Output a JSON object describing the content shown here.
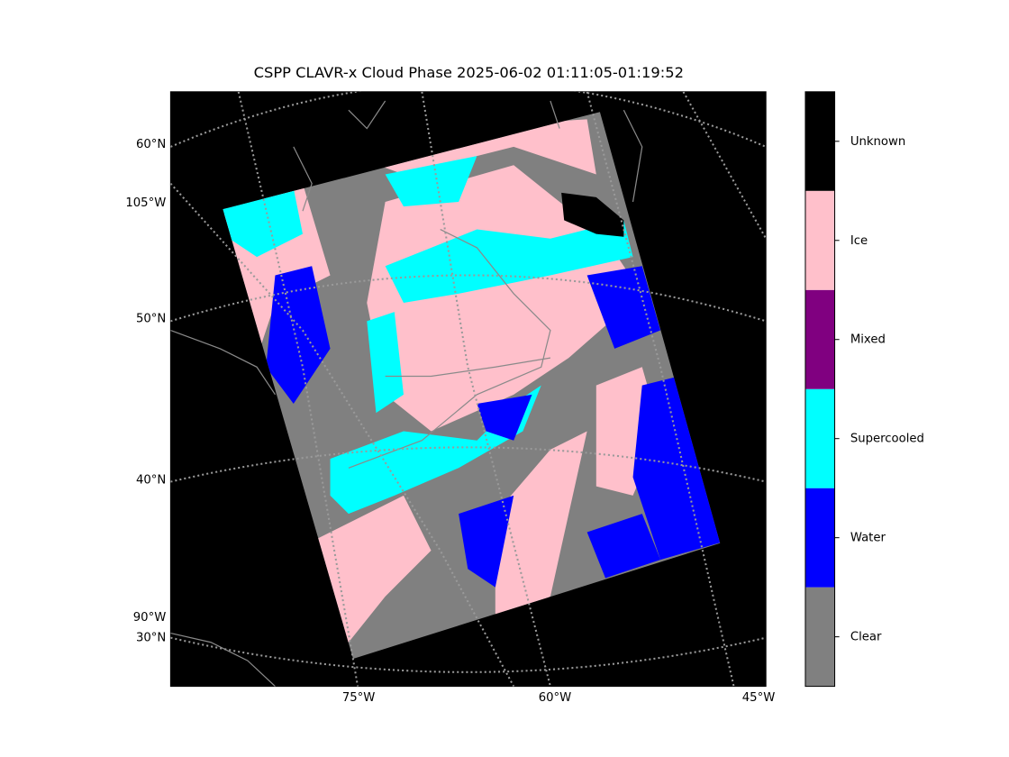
{
  "title": "CSPP CLAVR-x Cloud Phase 2025-06-02 01:11:05-01:19:52",
  "map": {
    "left_labels": [
      "60°N",
      "105°W",
      "50°N",
      "40°N",
      "90°W",
      "30°N"
    ],
    "bottom_labels": [
      "75°W",
      "60°W",
      "45°W"
    ]
  },
  "colorbar": {
    "classes": [
      {
        "label": "Clear",
        "color": "#808080"
      },
      {
        "label": "Water",
        "color": "#0000ff"
      },
      {
        "label": "Supercooled",
        "color": "#00ffff"
      },
      {
        "label": "Mixed",
        "color": "#800080"
      },
      {
        "label": "Ice",
        "color": "#ffc0cb"
      },
      {
        "label": "Unknown",
        "color": "#000000"
      }
    ]
  }
}
